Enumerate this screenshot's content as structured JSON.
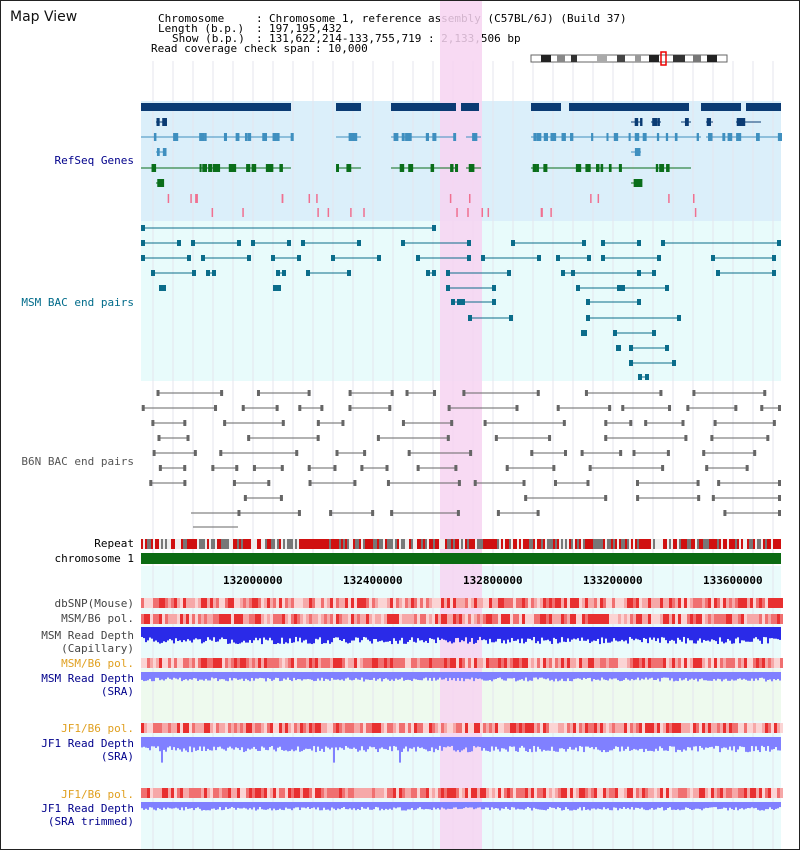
{
  "page": {
    "title": "Map View",
    "info": {
      "chromosome_label": "Chromosome",
      "chromosome_value": "Chromosome 1, reference assembly (C57BL/6J) (Build 37)",
      "length_label": "Length (b.p.)",
      "length_value": "197,195,432",
      "show_label": "Show (b.p.)",
      "show_value": "131,622,214-133,755,719 : 2,133,506 bp",
      "coverage_label": "Read coverage check span",
      "coverage_value": "10,000"
    }
  },
  "colors": {
    "refseq_dark": "#0b3b73",
    "refseq_mid": "#3f8fbf",
    "refseq_green": "#0a6e1a",
    "refseq_bg": "#dbeffa",
    "msm_bac": "#0b6c8a",
    "bac_bg": "#e8fbfb",
    "b6n_bac": "#555555",
    "highlight": "#f7d3f1",
    "chromosome_bar": "#0b6b12",
    "snp_red": "#e84040",
    "depth_blue": "#2a2ae8",
    "depth_light": "#8080ff",
    "pol_label_orange": "#e0a020",
    "label_navy": "#00008b",
    "label_teal": "#006b8a"
  },
  "tracks": {
    "refseq_genes": "RefSeq Genes",
    "msm_bac_end_pairs": "MSM BAC end pairs",
    "b6n_bac_end_pairs": "B6N BAC end pairs",
    "repeat": "Repeat",
    "chromosome": "chromosome 1",
    "dbsnp": "dbSNP(Mouse)",
    "msm_b6_pol_1": "MSM/B6 pol.",
    "msm_read_depth_capillary_1": "MSM Read Depth",
    "msm_read_depth_capillary_2": "(Capillary)",
    "msm_b6_pol_2": "MSM/B6 pol.",
    "msm_read_depth_sra_1": "MSM Read Depth",
    "msm_read_depth_sra_2": "(SRA)",
    "jf1_b6_pol_1": "JF1/B6 pol.",
    "jf1_read_depth_sra_1": "JF1 Read Depth",
    "jf1_read_depth_sra_2": "(SRA)",
    "jf1_b6_pol_2": "JF1/B6 pol.",
    "jf1_read_depth_trim_1": "JF1 Read Depth",
    "jf1_read_depth_trim_2": "(SRA trimmed)"
  },
  "axis": {
    "ticks": [
      "132000000",
      "132400000",
      "132800000",
      "133200000",
      "133600000"
    ]
  }
}
